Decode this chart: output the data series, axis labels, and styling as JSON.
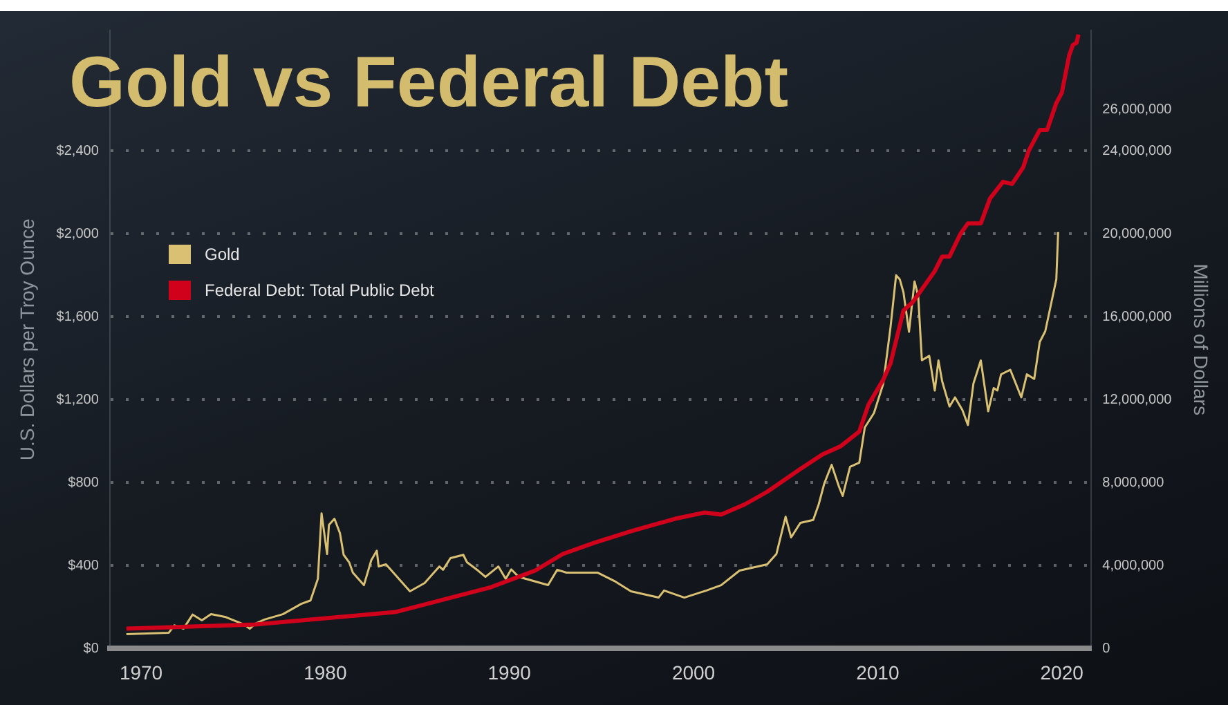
{
  "chart_data": {
    "type": "line",
    "title": "Gold vs Federal Debt",
    "ylabel": "U.S. Dollars per Troy Ounce",
    "y2label": "Millions of Dollars",
    "xlim": [
      1968.3,
      2021.6
    ],
    "xticks": [
      1970,
      1980,
      1990,
      2000,
      2010,
      2020
    ],
    "ylim": [
      0,
      2980
    ],
    "yticks": [
      {
        "value": 0,
        "label": "$0"
      },
      {
        "value": 400,
        "label": "$400"
      },
      {
        "value": 800,
        "label": "$800"
      },
      {
        "value": 1200,
        "label": "$1,200"
      },
      {
        "value": 1600,
        "label": "$1,600"
      },
      {
        "value": 2000,
        "label": "$2,000"
      },
      {
        "value": 2400,
        "label": "$2,400"
      }
    ],
    "y2lim": [
      0,
      29800000
    ],
    "y2ticks": [
      {
        "value": 0,
        "label": "0"
      },
      {
        "value": 4000000,
        "label": "4,000,000"
      },
      {
        "value": 8000000,
        "label": "8,000,000"
      },
      {
        "value": 12000000,
        "label": "12,000,000"
      },
      {
        "value": 16000000,
        "label": "16,000,000"
      },
      {
        "value": 20000000,
        "label": "20,000,000"
      },
      {
        "value": 24000000,
        "label": "24,000,000"
      },
      {
        "value": 26000000,
        "label": "26,000,000"
      }
    ],
    "grid": "y",
    "legend": "top left",
    "series": [
      {
        "name": "Gold",
        "color": "#d9c073",
        "x": [
          1969.2,
          1971.5,
          1971.8,
          1972.3,
          1972.8,
          1973.3,
          1973.8,
          1974.6,
          1975.6,
          1975.9,
          1976.2,
          1976.7,
          1977.7,
          1978.7,
          1979.2,
          1979.6,
          1979.8,
          1980.1,
          1980.2,
          1980.5,
          1980.8,
          1981.0,
          1981.3,
          1981.5,
          1982.1,
          1982.5,
          1982.8,
          1982.9,
          1983.3,
          1983.8,
          1984.6,
          1985.4,
          1986.2,
          1986.4,
          1986.8,
          1987.5,
          1987.7,
          1988.3,
          1988.7,
          1989.4,
          1989.8,
          1990.1,
          1990.5,
          1990.9,
          1992.1,
          1992.6,
          1993.1,
          1994.8,
          1995.7,
          1996.6,
          1998.1,
          1998.4,
          1999.5,
          2000.7,
          2001.5,
          2002.5,
          2004.0,
          2004.5,
          2005.0,
          2005.3,
          2005.8,
          2006.5,
          2006.8,
          2007.1,
          2007.5,
          2007.9,
          2008.1,
          2008.5,
          2009.0,
          2009.3,
          2009.8,
          2010.3,
          2010.7,
          2011.0,
          2011.2,
          2011.4,
          2011.7,
          2012.0,
          2012.2,
          2012.4,
          2012.8,
          2013.1,
          2013.3,
          2013.5,
          2013.9,
          2014.2,
          2014.6,
          2014.9,
          2015.2,
          2015.4,
          2015.6,
          2016.0,
          2016.3,
          2016.5,
          2016.7,
          2017.2,
          2017.5,
          2017.8,
          2018.1,
          2018.5,
          2018.8,
          2019.1,
          2019.7,
          2019.8
        ],
        "values": [
          70,
          76,
          112,
          96,
          164,
          136,
          166,
          152,
          116,
          96,
          120,
          140,
          166,
          216,
          232,
          336,
          652,
          456,
          596,
          626,
          556,
          452,
          416,
          366,
          306,
          426,
          472,
          396,
          406,
          356,
          276,
          316,
          396,
          380,
          436,
          452,
          416,
          376,
          346,
          396,
          336,
          382,
          346,
          336,
          306,
          380,
          366,
          366,
          326,
          276,
          246,
          280,
          246,
          280,
          306,
          376,
          406,
          456,
          636,
          536,
          606,
          620,
          696,
          796,
          886,
          780,
          736,
          876,
          896,
          1066,
          1136,
          1276,
          1552,
          1800,
          1780,
          1717,
          1527,
          1770,
          1700,
          1390,
          1411,
          1244,
          1389,
          1289,
          1167,
          1211,
          1150,
          1078,
          1278,
          1333,
          1389,
          1144,
          1256,
          1244,
          1322,
          1344,
          1278,
          1211,
          1322,
          1300,
          1478,
          1530,
          1780,
          2008
        ]
      },
      {
        "name": "Federal Debt: Total Public Debt",
        "color": "#d0021b",
        "axis": "y2",
        "x": [
          1969.2,
          1976.2,
          1980.0,
          1983.8,
          1986.4,
          1989.0,
          1991.4,
          1992.9,
          1994.6,
          1996.6,
          1999.0,
          2000.6,
          2001.5,
          2002.8,
          2004.0,
          2005.8,
          2007.0,
          2008.0,
          2009.0,
          2009.5,
          2010.3,
          2010.7,
          2011.4,
          2011.9,
          2013.1,
          2013.5,
          2013.9,
          2014.5,
          2014.9,
          2015.6,
          2016.1,
          2016.8,
          2017.3,
          2017.9,
          2018.2,
          2018.8,
          2019.2,
          2019.7,
          2020.0,
          2020.4,
          2020.6,
          2020.8,
          2020.9
        ],
        "values": [
          960000,
          1160000,
          1460000,
          1760000,
          2360000,
          2960000,
          3760000,
          4560000,
          5100000,
          5660000,
          6260000,
          6560000,
          6460000,
          6960000,
          7560000,
          8660000,
          9360000,
          9760000,
          10460000,
          11760000,
          12960000,
          13760000,
          16300000,
          16700000,
          18200000,
          18900000,
          18900000,
          20000000,
          20500000,
          20500000,
          21700000,
          22500000,
          22400000,
          23200000,
          24000000,
          25000000,
          25000000,
          26300000,
          26800000,
          28600000,
          29100000,
          29200000,
          29600000
        ]
      }
    ]
  }
}
